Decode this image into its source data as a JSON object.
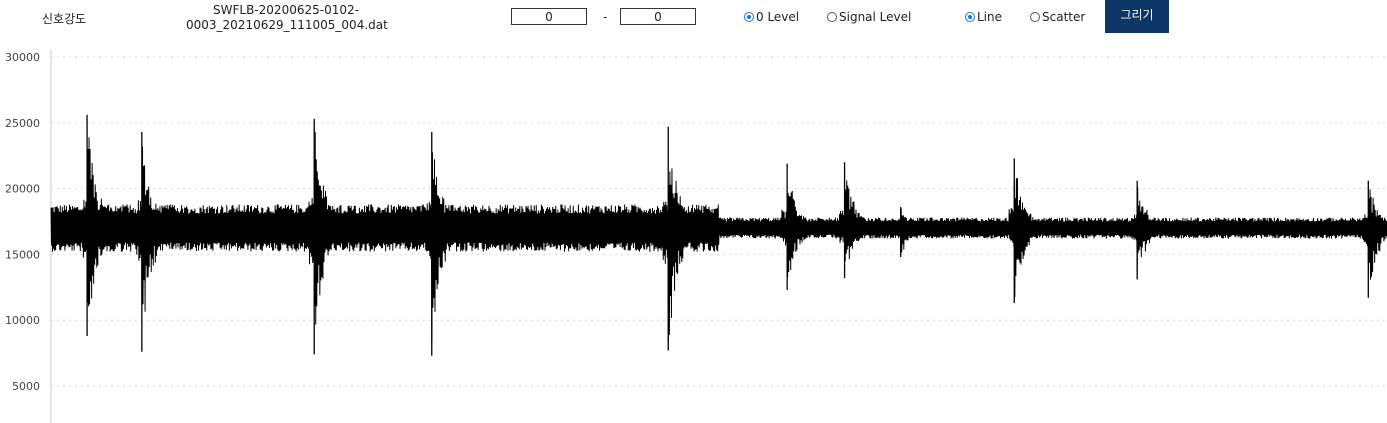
{
  "toolbar": {
    "signal_label": "신호강도",
    "filename_line1": "SWFLB-20200625-0102-",
    "filename_line2": "0003_20210629_111005_004.dat",
    "range_start": "0",
    "range_separator": "-",
    "range_end": "0",
    "radio_zero_level": "0 Level",
    "radio_signal_level": "Signal Level",
    "radio_line": "Line",
    "radio_scatter": "Scatter",
    "draw_button": "그리기",
    "draw_button_color": "#0d3566",
    "radio_accent_color": "#1a73e8"
  },
  "chart_data": {
    "type": "line",
    "title": "",
    "xlabel": "",
    "ylabel": "",
    "ylim": [
      2500,
      30000
    ],
    "yticks": [
      "30000",
      "25000",
      "20000",
      "15000",
      "10000",
      "5000"
    ],
    "grid": "horizontal dotted",
    "line_color": "#000000",
    "baseline": 17000,
    "x_extent": [
      0,
      1
    ],
    "bursts": [
      {
        "x": 0.027,
        "max": 25600,
        "min": 8800
      },
      {
        "x": 0.068,
        "max": 24300,
        "min": 7600
      },
      {
        "x": 0.197,
        "max": 25300,
        "min": 7400
      },
      {
        "x": 0.285,
        "max": 24300,
        "min": 7300
      },
      {
        "x": 0.462,
        "max": 24700,
        "min": 7700
      },
      {
        "x": 0.551,
        "max": 21900,
        "min": 12300
      },
      {
        "x": 0.594,
        "max": 22000,
        "min": 13200
      },
      {
        "x": 0.636,
        "max": 18600,
        "min": 14800
      },
      {
        "x": 0.721,
        "max": 22300,
        "min": 11300
      },
      {
        "x": 0.813,
        "max": 20600,
        "min": 13100
      },
      {
        "x": 0.986,
        "max": 20600,
        "min": 11700
      }
    ]
  }
}
